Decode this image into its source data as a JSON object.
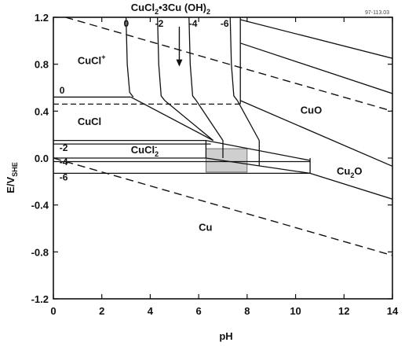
{
  "chart_data": {
    "type": "line",
    "title": "",
    "figure_id": "97-113.03",
    "xlabel": "pH",
    "ylabel": "E/V",
    "ylabel_sub": "SHE",
    "xlim": [
      0,
      14
    ],
    "ylim": [
      -1.2,
      1.2
    ],
    "xticks": [
      0,
      2,
      4,
      6,
      8,
      10,
      12,
      14
    ],
    "yticks": [
      -1.2,
      -0.8,
      -0.4,
      0.0,
      0.4,
      0.8,
      1.2
    ],
    "ytick_labels": [
      "-1.2",
      "-0.8",
      "-0.4",
      "0.0",
      "0.4",
      "0.8",
      "1.2"
    ],
    "grid": false,
    "water_lines": [
      {
        "x": [
          0,
          14
        ],
        "y": [
          1.23,
          0.4
        ]
      },
      {
        "x": [
          0,
          14
        ],
        "y": [
          0.0,
          -0.83
        ]
      }
    ],
    "region_labels": [
      {
        "id": "cucl-plus",
        "text": "CuCl",
        "sup": "+",
        "x": 1.0,
        "y": 0.8
      },
      {
        "id": "cucl",
        "text": "CuCl",
        "x": 1.0,
        "y": 0.28
      },
      {
        "id": "cucl2-minus",
        "text": "CuCl",
        "sub": "2",
        "sup": "-",
        "x": 3.2,
        "y": 0.04
      },
      {
        "id": "cuo",
        "text": "CuO",
        "x": 10.2,
        "y": 0.38
      },
      {
        "id": "cu2o",
        "text": "Cu",
        "sub": "2",
        "tail": "O",
        "x": 11.7,
        "y": -0.14
      },
      {
        "id": "cu",
        "text": "Cu",
        "x": 6.0,
        "y": -0.62
      }
    ],
    "compound_label": {
      "text": "CuCl",
      "sub": "2",
      "mid": "•3Cu (OH)",
      "sub2": "2",
      "x": 3.2,
      "y": 1.25
    },
    "activity_labels": [
      {
        "text": "0",
        "x": 2.9,
        "y": 1.12
      },
      {
        "text": "-2",
        "x": 4.2,
        "y": 1.12
      },
      {
        "text": "-4",
        "x": 5.6,
        "y": 1.12
      },
      {
        "text": "-6",
        "x": 6.9,
        "y": 1.12
      },
      {
        "text": "0",
        "x": 0.25,
        "y": 0.55
      },
      {
        "text": "-2",
        "x": 0.25,
        "y": 0.06
      },
      {
        "text": "-4",
        "x": 0.25,
        "y": -0.06
      },
      {
        "text": "-6",
        "x": 0.25,
        "y": -0.19
      }
    ],
    "boundaries": [
      {
        "name": "cucl+-cucl-0",
        "x": [
          0,
          3.2
        ],
        "y": [
          0.52,
          0.52
        ]
      },
      {
        "name": "cucl+-cucl-dashed",
        "x": [
          0,
          7.7
        ],
        "y": [
          0.46,
          0.46
        ],
        "dashed": true
      },
      {
        "name": "cucl-cucl2-a",
        "x": [
          0,
          6.3
        ],
        "y": [
          0.15,
          0.15
        ]
      },
      {
        "name": "cucl-cucl2-b",
        "x": [
          0,
          6.5
        ],
        "y": [
          0.12,
          0.12
        ]
      },
      {
        "name": "cucl2-cu-a",
        "x": [
          0,
          6.3
        ],
        "y": [
          0.0,
          0.0
        ]
      },
      {
        "name": "cucl2-cu-b",
        "x": [
          0,
          10.6
        ],
        "y": [
          -0.13,
          -0.13
        ]
      },
      {
        "name": "v-0",
        "x": [
          3.0,
          3.05,
          3.15,
          3.3
        ],
        "y": [
          1.2,
          0.8,
          0.56,
          0.52
        ]
      },
      {
        "name": "v-2",
        "x": [
          4.3,
          4.35,
          4.45,
          4.6
        ],
        "y": [
          1.2,
          0.8,
          0.53,
          0.49
        ]
      },
      {
        "name": "v-4",
        "x": [
          5.6,
          5.65,
          5.75,
          5.9
        ],
        "y": [
          1.2,
          0.8,
          0.53,
          0.49
        ]
      },
      {
        "name": "v-6",
        "x": [
          7.3,
          7.35,
          7.45,
          7.6
        ],
        "y": [
          1.2,
          0.8,
          0.53,
          0.49
        ]
      },
      {
        "name": "v-line-7.7",
        "x": [
          7.72,
          7.72
        ],
        "y": [
          1.2,
          0.46
        ]
      },
      {
        "name": "hydroxy-diag",
        "x": [
          3.2,
          6.6
        ],
        "y": [
          0.52,
          0.15
        ]
      },
      {
        "name": "hydroxy-diag-2",
        "x": [
          4.6,
          6.6
        ],
        "y": [
          0.49,
          0.15
        ]
      },
      {
        "name": "hydroxy-diag-3",
        "x": [
          5.9,
          7.0
        ],
        "y": [
          0.49,
          0.15
        ]
      },
      {
        "name": "hydroxy-diag-4",
        "x": [
          7.6,
          8.5
        ],
        "y": [
          0.49,
          0.15
        ]
      },
      {
        "name": "cuo-top-1",
        "x": [
          7.72,
          14
        ],
        "y": [
          1.18,
          0.85
        ]
      },
      {
        "name": "cuo-top-2",
        "x": [
          7.72,
          14
        ],
        "y": [
          0.98,
          0.55
        ]
      },
      {
        "name": "cuo-diag",
        "x": [
          7.72,
          14
        ],
        "y": [
          0.49,
          -0.07
        ]
      },
      {
        "name": "cu2o-diag",
        "x": [
          10.6,
          14
        ],
        "y": [
          -0.13,
          -0.35
        ]
      },
      {
        "name": "band-top",
        "x": [
          6.3,
          10.6
        ],
        "y": [
          0.15,
          -0.02
        ]
      },
      {
        "name": "band-bottom",
        "x": [
          6.3,
          10.6
        ],
        "y": [
          0.0,
          -0.13
        ]
      },
      {
        "name": "v-6.3",
        "x": [
          6.3,
          6.3
        ],
        "y": [
          0.15,
          0.0
        ]
      },
      {
        "name": "v-7.0",
        "x": [
          7.0,
          7.0
        ],
        "y": [
          0.15,
          0.0
        ]
      },
      {
        "name": "v-8.5",
        "x": [
          8.5,
          8.5
        ],
        "y": [
          0.15,
          -0.07
        ]
      },
      {
        "name": "v-10.6",
        "x": [
          10.6,
          10.6
        ],
        "y": [
          0.0,
          -0.13
        ]
      },
      {
        "name": "band-mid",
        "x": [
          0,
          10.6
        ],
        "y": [
          -0.03,
          -0.03
        ]
      }
    ],
    "shaded_box": {
      "x": [
        6.3,
        8.0
      ],
      "y": [
        -0.12,
        0.08
      ],
      "fill": "#cfcfcf"
    },
    "arrow": {
      "x": [
        5.2,
        5.2
      ],
      "y": [
        1.12,
        0.78
      ]
    }
  }
}
